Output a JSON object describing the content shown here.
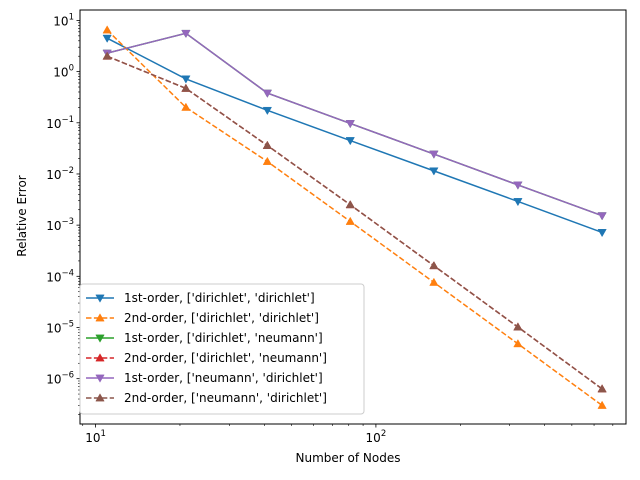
{
  "chart_data": {
    "type": "line",
    "xlabel": "Number of Nodes",
    "ylabel": "Relative Error",
    "xscale": "log",
    "yscale": "log",
    "xlim": [
      8.8,
      780
    ],
    "ylim": [
      1.3e-07,
      16
    ],
    "grid": false,
    "legend_position": "lower-left",
    "x_ticks": [
      {
        "value": 10,
        "base": "10",
        "exp": "1"
      },
      {
        "value": 100,
        "base": "10",
        "exp": "2"
      }
    ],
    "y_ticks": [
      {
        "value": 1e-06,
        "base": "10",
        "exp": "−6"
      },
      {
        "value": 1e-05,
        "base": "10",
        "exp": "−5"
      },
      {
        "value": 0.0001,
        "base": "10",
        "exp": "−4"
      },
      {
        "value": 0.001,
        "base": "10",
        "exp": "−3"
      },
      {
        "value": 0.01,
        "base": "10",
        "exp": "−2"
      },
      {
        "value": 0.1,
        "base": "10",
        "exp": "−1"
      },
      {
        "value": 1,
        "base": "10",
        "exp": "0"
      },
      {
        "value": 10,
        "base": "10",
        "exp": "1"
      }
    ],
    "x": [
      11,
      21,
      41,
      81,
      161,
      321,
      641
    ],
    "series": [
      {
        "name": "1st-order, ['dirichlet', 'dirichlet']",
        "color": "#1f77b4",
        "dash": "solid",
        "marker": "triangle-down",
        "values": [
          4.5,
          0.72,
          0.175,
          0.045,
          0.0115,
          0.0029,
          0.00072
        ]
      },
      {
        "name": "2nd-order, ['dirichlet', 'dirichlet']",
        "color": "#ff7f0e",
        "dash": "dashed",
        "marker": "triangle-up",
        "values": [
          6.5,
          0.2,
          0.0175,
          0.00118,
          7.6e-05,
          4.8e-06,
          3e-07
        ]
      },
      {
        "name": "1st-order, ['dirichlet', 'neumann']",
        "color": "#2ca02c",
        "dash": "solid",
        "marker": "triangle-down",
        "values": [
          2.3,
          5.6,
          0.38,
          0.097,
          0.0245,
          0.0061,
          0.00153
        ]
      },
      {
        "name": "2nd-order, ['dirichlet', 'neumann']",
        "color": "#d62728",
        "dash": "dashed",
        "marker": "triangle-up",
        "values": [
          2.0,
          0.47,
          0.036,
          0.0025,
          0.000161,
          1.02e-05,
          6.3e-07
        ]
      },
      {
        "name": "1st-order, ['neumann', 'dirichlet']",
        "color": "#9467bd",
        "dash": "solid",
        "marker": "triangle-down",
        "values": [
          2.3,
          5.6,
          0.38,
          0.097,
          0.0245,
          0.0061,
          0.00153
        ]
      },
      {
        "name": "2nd-order, ['neumann', 'dirichlet']",
        "color": "#8c564b",
        "dash": "dashed",
        "marker": "triangle-up",
        "values": [
          2.0,
          0.47,
          0.036,
          0.0025,
          0.000161,
          1.02e-05,
          6.3e-07
        ]
      }
    ]
  }
}
